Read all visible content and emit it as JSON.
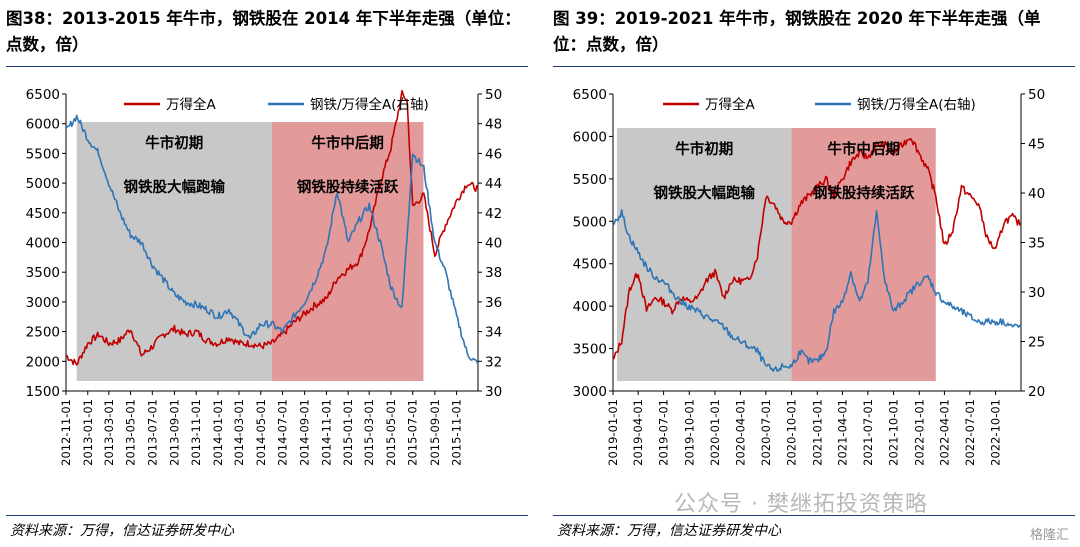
{
  "charts": [
    {
      "title_line1": "图38：2013-2015 年牛市，钢铁股在 2014 年下半年走强（单位：",
      "title_line2": "点数，倍）",
      "source": "资料来源：万得，信达证券研发中心",
      "legend": [
        "万得全A",
        "钢铁/万得全A(右轴)"
      ],
      "shade_labels": {
        "early_title": "牛市初期",
        "early_desc": "钢铁股大幅跑输",
        "late_title": "牛市中后期",
        "late_desc": "钢铁股持续活跃"
      },
      "left_axis_ticks": [
        "6500",
        "6000",
        "5500",
        "5000",
        "4500",
        "4000",
        "3500",
        "3000",
        "2500",
        "2000",
        "1500"
      ],
      "right_axis_ticks": [
        "50",
        "48",
        "46",
        "44",
        "42",
        "40",
        "38",
        "36",
        "34",
        "32",
        "30"
      ],
      "x_ticks": [
        "2012-11-01",
        "2013-01-01",
        "2013-03-01",
        "2013-05-01",
        "2013-07-01",
        "2013-09-01",
        "2013-11-01",
        "2014-01-01",
        "2014-03-01",
        "2014-05-01",
        "2014-07-01",
        "2014-09-01",
        "2014-11-01",
        "2015-01-01",
        "2015-03-01",
        "2015-05-01",
        "2015-07-01",
        "2015-09-01",
        "2015-11-01"
      ]
    },
    {
      "title_line1": "图 39：2019-2021 年牛市，钢铁股在 2020 年下半年走强（单",
      "title_line2": "位：点数，倍）",
      "source": "资料来源：万得，信达证券研发中心",
      "legend": [
        "万得全A",
        "钢铁/万得全A(右轴)"
      ],
      "shade_labels": {
        "early_title": "牛市初期",
        "early_desc": "钢铁股大幅跑输",
        "late_title": "牛市中后期",
        "late_desc": "钢铁股持续活跃"
      },
      "left_axis_ticks": [
        "6500",
        "6000",
        "5500",
        "5000",
        "4500",
        "4000",
        "3500",
        "3000"
      ],
      "right_axis_ticks": [
        "50",
        "45",
        "40",
        "35",
        "30",
        "25",
        "20"
      ],
      "x_ticks": [
        "2019-01-01",
        "2019-04-01",
        "2019-07-01",
        "2019-10-01",
        "2020-01-01",
        "2020-04-01",
        "2020-07-01",
        "2020-10-01",
        "2021-01-01",
        "2021-04-01",
        "2021-07-01",
        "2021-10-01",
        "2022-01-01",
        "2022-04-01",
        "2022-07-01",
        "2022-10-01"
      ]
    }
  ],
  "watermark": "公众号 · 樊继拓投资策略",
  "watermark2": "格隆汇",
  "chart_data": [
    {
      "type": "line",
      "title": "图38：2013-2015 年牛市，钢铁股在 2014 年下半年走强（单位：点数，倍）",
      "x_range": [
        "2012-11-01",
        "2015-12-31"
      ],
      "y_left_range": [
        1500,
        6500
      ],
      "y_right_range": [
        30,
        50
      ],
      "legend_position": "top-center",
      "shaded_regions": [
        {
          "label": "牛市初期",
          "from": "2012-12-01",
          "to": "2014-06-01",
          "color": "#c8c8c8"
        },
        {
          "label": "牛市中后期",
          "from": "2014-06-01",
          "to": "2015-07-31",
          "color": "#e39a9a"
        }
      ],
      "series": [
        {
          "name": "万得全A",
          "axis": "left",
          "color": "#c00000",
          "points": [
            [
              "2012-11-01",
              2100
            ],
            [
              "2012-12-01",
              1950
            ],
            [
              "2013-01-01",
              2300
            ],
            [
              "2013-02-01",
              2450
            ],
            [
              "2013-03-01",
              2300
            ],
            [
              "2013-04-01",
              2350
            ],
            [
              "2013-05-01",
              2550
            ],
            [
              "2013-06-01",
              2100
            ],
            [
              "2013-07-01",
              2250
            ],
            [
              "2013-08-01",
              2450
            ],
            [
              "2013-09-01",
              2550
            ],
            [
              "2013-10-01",
              2450
            ],
            [
              "2013-11-01",
              2500
            ],
            [
              "2013-12-01",
              2350
            ],
            [
              "2014-01-01",
              2300
            ],
            [
              "2014-02-01",
              2400
            ],
            [
              "2014-03-01",
              2300
            ],
            [
              "2014-04-01",
              2300
            ],
            [
              "2014-05-01",
              2250
            ],
            [
              "2014-06-01",
              2300
            ],
            [
              "2014-07-01",
              2450
            ],
            [
              "2014-08-01",
              2650
            ],
            [
              "2014-09-01",
              2800
            ],
            [
              "2014-10-01",
              2950
            ],
            [
              "2014-11-01",
              3050
            ],
            [
              "2014-12-01",
              3400
            ],
            [
              "2015-01-01",
              3550
            ],
            [
              "2015-02-01",
              3700
            ],
            [
              "2015-03-01",
              4200
            ],
            [
              "2015-04-01",
              5000
            ],
            [
              "2015-05-01",
              5600
            ],
            [
              "2015-06-01",
              6500
            ],
            [
              "2015-06-15",
              6400
            ],
            [
              "2015-07-01",
              4600
            ],
            [
              "2015-08-01",
              4800
            ],
            [
              "2015-09-01",
              3800
            ],
            [
              "2015-10-01",
              4300
            ],
            [
              "2015-11-01",
              4700
            ],
            [
              "2015-12-01",
              5000
            ],
            [
              "2015-12-31",
              4900
            ]
          ]
        },
        {
          "name": "钢铁/万得全A(右轴)",
          "axis": "right",
          "color": "#2e75b6",
          "points": [
            [
              "2012-11-01",
              47.5
            ],
            [
              "2012-12-01",
              48.5
            ],
            [
              "2013-01-01",
              47.0
            ],
            [
              "2013-02-01",
              46.0
            ],
            [
              "2013-03-01",
              44.0
            ],
            [
              "2013-04-01",
              42.0
            ],
            [
              "2013-05-01",
              40.5
            ],
            [
              "2013-06-01",
              40.0
            ],
            [
              "2013-07-01",
              38.5
            ],
            [
              "2013-08-01",
              37.5
            ],
            [
              "2013-09-01",
              36.5
            ],
            [
              "2013-10-01",
              36.0
            ],
            [
              "2013-11-01",
              35.8
            ],
            [
              "2013-12-01",
              35.5
            ],
            [
              "2014-01-01",
              35.0
            ],
            [
              "2014-02-01",
              35.5
            ],
            [
              "2014-03-01",
              34.5
            ],
            [
              "2014-04-01",
              33.5
            ],
            [
              "2014-05-01",
              34.5
            ],
            [
              "2014-06-01",
              34.5
            ],
            [
              "2014-07-01",
              34.0
            ],
            [
              "2014-08-01",
              35.0
            ],
            [
              "2014-09-01",
              36.0
            ],
            [
              "2014-10-01",
              37.5
            ],
            [
              "2014-11-01",
              39.5
            ],
            [
              "2014-12-01",
              43.5
            ],
            [
              "2015-01-01",
              40.0
            ],
            [
              "2015-02-01",
              41.5
            ],
            [
              "2015-03-01",
              42.5
            ],
            [
              "2015-04-01",
              40.0
            ],
            [
              "2015-05-01",
              37.0
            ],
            [
              "2015-06-01",
              35.5
            ],
            [
              "2015-07-01",
              46.0
            ],
            [
              "2015-08-01",
              45.0
            ],
            [
              "2015-09-01",
              40.0
            ],
            [
              "2015-10-01",
              38.0
            ],
            [
              "2015-11-01",
              35.0
            ],
            [
              "2015-12-01",
              32.5
            ],
            [
              "2015-12-31",
              31.8
            ]
          ]
        }
      ]
    },
    {
      "type": "line",
      "title": "图 39：2019-2021 年牛市，钢铁股在 2020 年下半年走强（单位：点数，倍）",
      "x_range": [
        "2019-01-01",
        "2022-12-31"
      ],
      "y_left_range": [
        3000,
        6500
      ],
      "y_right_range": [
        20,
        50
      ],
      "legend_position": "top-center",
      "shaded_regions": [
        {
          "label": "牛市初期",
          "from": "2019-01-15",
          "to": "2020-10-01",
          "color": "#c8c8c8"
        },
        {
          "label": "牛市中后期",
          "from": "2020-10-01",
          "to": "2022-03-01",
          "color": "#e39a9a"
        }
      ],
      "series": [
        {
          "name": "万得全A",
          "axis": "left",
          "color": "#c00000",
          "points": [
            [
              "2019-01-01",
              3350
            ],
            [
              "2019-02-01",
              3600
            ],
            [
              "2019-03-01",
              4200
            ],
            [
              "2019-04-01",
              4400
            ],
            [
              "2019-05-01",
              3950
            ],
            [
              "2019-06-01",
              4100
            ],
            [
              "2019-07-01",
              4050
            ],
            [
              "2019-08-01",
              3950
            ],
            [
              "2019-09-01",
              4100
            ],
            [
              "2019-10-01",
              4050
            ],
            [
              "2019-11-01",
              4100
            ],
            [
              "2019-12-01",
              4300
            ],
            [
              "2020-01-01",
              4400
            ],
            [
              "2020-02-01",
              4100
            ],
            [
              "2020-03-01",
              4300
            ],
            [
              "2020-04-01",
              4300
            ],
            [
              "2020-05-01",
              4300
            ],
            [
              "2020-06-01",
              4600
            ],
            [
              "2020-07-01",
              5300
            ],
            [
              "2020-08-01",
              5200
            ],
            [
              "2020-09-01",
              5000
            ],
            [
              "2020-10-01",
              5000
            ],
            [
              "2020-11-01",
              5200
            ],
            [
              "2020-12-01",
              5300
            ],
            [
              "2021-01-01",
              5400
            ],
            [
              "2021-02-01",
              5500
            ],
            [
              "2021-03-01",
              5300
            ],
            [
              "2021-04-01",
              5500
            ],
            [
              "2021-05-01",
              5700
            ],
            [
              "2021-06-01",
              5800
            ],
            [
              "2021-07-01",
              5750
            ],
            [
              "2021-08-01",
              5900
            ],
            [
              "2021-09-01",
              5900
            ],
            [
              "2021-10-01",
              5800
            ],
            [
              "2021-11-01",
              5900
            ],
            [
              "2021-12-01",
              6000
            ],
            [
              "2022-01-01",
              5800
            ],
            [
              "2022-02-01",
              5600
            ],
            [
              "2022-03-01",
              5300
            ],
            [
              "2022-04-01",
              4700
            ],
            [
              "2022-05-01",
              4900
            ],
            [
              "2022-06-01",
              5400
            ],
            [
              "2022-07-01",
              5300
            ],
            [
              "2022-08-01",
              5200
            ],
            [
              "2022-09-01",
              4800
            ],
            [
              "2022-10-01",
              4650
            ],
            [
              "2022-11-01",
              5000
            ],
            [
              "2022-12-01",
              5050
            ],
            [
              "2022-12-31",
              4950
            ]
          ]
        },
        {
          "name": "钢铁/万得全A(右轴)",
          "axis": "right",
          "color": "#2e75b6",
          "points": [
            [
              "2019-01-01",
              37
            ],
            [
              "2019-02-01",
              38
            ],
            [
              "2019-03-01",
              35.5
            ],
            [
              "2019-04-01",
              34
            ],
            [
              "2019-05-01",
              32.5
            ],
            [
              "2019-06-01",
              31.5
            ],
            [
              "2019-07-01",
              31
            ],
            [
              "2019-08-01",
              30
            ],
            [
              "2019-09-01",
              29
            ],
            [
              "2019-10-01",
              28.5
            ],
            [
              "2019-11-01",
              28
            ],
            [
              "2019-12-01",
              27.5
            ],
            [
              "2020-01-01",
              27
            ],
            [
              "2020-02-01",
              26.5
            ],
            [
              "2020-03-01",
              25.5
            ],
            [
              "2020-04-01",
              25
            ],
            [
              "2020-05-01",
              24.5
            ],
            [
              "2020-06-01",
              24
            ],
            [
              "2020-07-01",
              22.5
            ],
            [
              "2020-08-01",
              22
            ],
            [
              "2020-09-01",
              22.5
            ],
            [
              "2020-10-01",
              22.5
            ],
            [
              "2020-11-01",
              24
            ],
            [
              "2020-12-01",
              23
            ],
            [
              "2021-01-01",
              23
            ],
            [
              "2021-02-01",
              24
            ],
            [
              "2021-03-01",
              28
            ],
            [
              "2021-04-01",
              29
            ],
            [
              "2021-05-01",
              32
            ],
            [
              "2021-06-01",
              29
            ],
            [
              "2021-07-01",
              31
            ],
            [
              "2021-08-01",
              38
            ],
            [
              "2021-09-01",
              31
            ],
            [
              "2021-10-01",
              28
            ],
            [
              "2021-11-01",
              29
            ],
            [
              "2021-12-01",
              30
            ],
            [
              "2022-01-01",
              31
            ],
            [
              "2022-02-01",
              31.5
            ],
            [
              "2022-03-01",
              30
            ],
            [
              "2022-04-01",
              29
            ],
            [
              "2022-05-01",
              28.5
            ],
            [
              "2022-06-01",
              28
            ],
            [
              "2022-07-01",
              27.5
            ],
            [
              "2022-08-01",
              27
            ],
            [
              "2022-09-01",
              27
            ],
            [
              "2022-10-01",
              27
            ],
            [
              "2022-11-01",
              27
            ],
            [
              "2022-12-01",
              26.5
            ],
            [
              "2022-12-31",
              26.5
            ]
          ]
        }
      ]
    }
  ]
}
